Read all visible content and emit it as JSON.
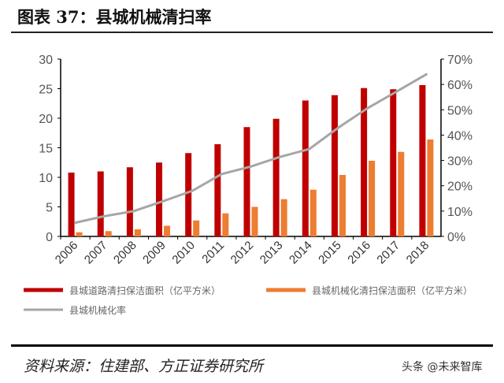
{
  "title": "图表 37：县城机械清扫率",
  "source": "资料来源：住建部、方正证券研究所",
  "watermark": "头条 @未来智库",
  "chart_data": {
    "type": "bar",
    "categories": [
      "2006",
      "2007",
      "2008",
      "2009",
      "2010",
      "2011",
      "2012",
      "2013",
      "2014",
      "2015",
      "2016",
      "2017",
      "2018"
    ],
    "series": [
      {
        "name": "县城道路清扫保洁面积（亿平方米）",
        "type": "bar",
        "axis": "left",
        "color": "#C00000",
        "values": [
          10.8,
          11.0,
          11.7,
          12.5,
          14.1,
          15.6,
          18.5,
          19.9,
          23.0,
          23.9,
          25.1,
          24.9,
          25.6
        ]
      },
      {
        "name": "县城机械化清扫保洁面积（亿平方米）",
        "type": "bar",
        "axis": "left",
        "color": "#ED7D31",
        "values": [
          0.7,
          0.9,
          1.2,
          1.8,
          2.7,
          3.9,
          5.0,
          6.3,
          7.9,
          10.4,
          12.8,
          14.3,
          16.4
        ]
      },
      {
        "name": "县城机械化率",
        "type": "line",
        "axis": "right",
        "color": "#A6A6A6",
        "values": [
          5.4,
          8.0,
          10.0,
          13.9,
          18.0,
          24.6,
          27.6,
          31.4,
          34.5,
          43.0,
          50.7,
          57.3,
          64.0
        ]
      }
    ],
    "left_axis": {
      "ylim": [
        0,
        30
      ],
      "ticks": [
        "0",
        "5",
        "10",
        "15",
        "20",
        "25",
        "30"
      ]
    },
    "right_axis": {
      "ylim": [
        0,
        70
      ],
      "ticks": [
        "0%",
        "10%",
        "20%",
        "30%",
        "40%",
        "50%",
        "60%",
        "70%"
      ]
    },
    "grid": false,
    "legend_position": "bottom"
  }
}
